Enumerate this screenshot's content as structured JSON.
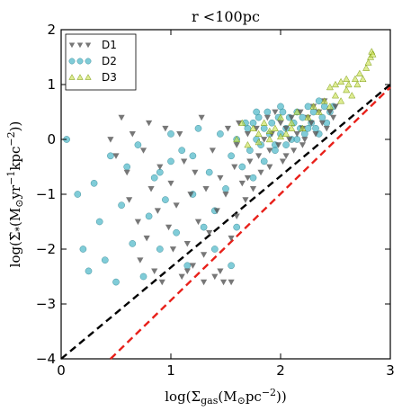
{
  "chart_data": {
    "type": "scatter",
    "title": "r <100pc",
    "xlabel": "log(Σgas(M⊙pc−2))",
    "ylabel": "log(Σ̇*(M⊙yr−1kpc−2))",
    "xlim": [
      0,
      3
    ],
    "ylim": [
      -4,
      2
    ],
    "x_ticks": [
      "0",
      "1",
      "2",
      "3"
    ],
    "y_ticks": [
      "−4",
      "−3",
      "−2",
      "−1",
      "0",
      "1",
      "2"
    ],
    "grid": false,
    "legend_position": "top-left",
    "series": [
      {
        "name": "D1",
        "marker": "triangle-down",
        "color": "#555555",
        "points": [
          [
            0.45,
            0.0
          ],
          [
            0.5,
            -0.3
          ],
          [
            0.55,
            0.4
          ],
          [
            0.6,
            -0.6
          ],
          [
            0.62,
            -1.1
          ],
          [
            0.65,
            0.1
          ],
          [
            0.7,
            -1.5
          ],
          [
            0.72,
            -2.2
          ],
          [
            0.75,
            -0.2
          ],
          [
            0.78,
            -1.8
          ],
          [
            0.8,
            0.3
          ],
          [
            0.82,
            -0.9
          ],
          [
            0.85,
            -2.4
          ],
          [
            0.88,
            -1.3
          ],
          [
            0.9,
            -0.5
          ],
          [
            0.92,
            -2.6
          ],
          [
            0.95,
            0.2
          ],
          [
            0.98,
            -1.6
          ],
          [
            1.0,
            -0.8
          ],
          [
            1.02,
            -2.0
          ],
          [
            1.05,
            -1.2
          ],
          [
            1.08,
            0.1
          ],
          [
            1.1,
            -2.5
          ],
          [
            1.12,
            -0.4
          ],
          [
            1.15,
            -1.9
          ],
          [
            1.18,
            -1.0
          ],
          [
            1.2,
            -2.3
          ],
          [
            1.22,
            -0.6
          ],
          [
            1.25,
            -1.5
          ],
          [
            1.28,
            0.4
          ],
          [
            1.3,
            -2.1
          ],
          [
            1.32,
            -0.9
          ],
          [
            1.35,
            -1.7
          ],
          [
            1.38,
            -0.2
          ],
          [
            1.4,
            -2.5
          ],
          [
            1.42,
            -1.3
          ],
          [
            1.45,
            -0.7
          ],
          [
            1.48,
            -2.6
          ],
          [
            1.5,
            -1.0
          ],
          [
            1.52,
            0.2
          ],
          [
            1.55,
            -1.8
          ],
          [
            1.58,
            -0.5
          ],
          [
            1.6,
            -1.4
          ],
          [
            1.62,
            0.3
          ],
          [
            1.65,
            -0.8
          ],
          [
            1.68,
            -1.1
          ],
          [
            1.7,
            0.1
          ],
          [
            1.72,
            -0.4
          ],
          [
            1.75,
            -0.9
          ],
          [
            1.78,
            0.2
          ],
          [
            1.8,
            -0.3
          ],
          [
            1.82,
            -0.6
          ],
          [
            1.85,
            0.0
          ],
          [
            1.88,
            0.4
          ],
          [
            1.9,
            -0.2
          ],
          [
            1.92,
            0.1
          ],
          [
            1.95,
            0.5
          ],
          [
            1.98,
            -0.1
          ],
          [
            2.0,
            0.3
          ],
          [
            2.02,
            -0.4
          ],
          [
            2.05,
            0.2
          ],
          [
            2.08,
            0.0
          ],
          [
            2.1,
            0.4
          ],
          [
            2.12,
            -0.2
          ],
          [
            2.15,
            0.1
          ],
          [
            2.18,
            0.5
          ],
          [
            2.2,
            0.2
          ],
          [
            2.22,
            0.0
          ],
          [
            2.25,
            0.4
          ],
          [
            2.28,
            0.3
          ],
          [
            2.3,
            0.6
          ],
          [
            2.32,
            0.1
          ],
          [
            2.35,
            0.5
          ],
          [
            2.38,
            0.3
          ],
          [
            2.4,
            0.7
          ],
          [
            2.42,
            0.2
          ],
          [
            2.45,
            0.5
          ],
          [
            2.48,
            0.4
          ],
          [
            2.5,
            0.6
          ],
          [
            1.55,
            -2.6
          ],
          [
            1.45,
            -2.4
          ],
          [
            1.3,
            -2.6
          ],
          [
            1.15,
            -2.4
          ],
          [
            1.6,
            -0.1
          ],
          [
            1.7,
            -0.7
          ],
          [
            1.9,
            -0.5
          ],
          [
            2.05,
            -0.3
          ],
          [
            2.2,
            -0.1
          ]
        ]
      },
      {
        "name": "D2",
        "marker": "circle",
        "color": "#4fb8c9",
        "points": [
          [
            0.05,
            0.0
          ],
          [
            0.15,
            -1.0
          ],
          [
            0.2,
            -2.0
          ],
          [
            0.25,
            -2.4
          ],
          [
            0.3,
            -0.8
          ],
          [
            0.35,
            -1.5
          ],
          [
            0.4,
            -2.2
          ],
          [
            0.45,
            -0.3
          ],
          [
            0.5,
            -2.6
          ],
          [
            0.55,
            -1.2
          ],
          [
            0.6,
            -0.5
          ],
          [
            0.65,
            -1.9
          ],
          [
            0.7,
            -0.1
          ],
          [
            0.75,
            -2.5
          ],
          [
            0.8,
            -1.4
          ],
          [
            0.85,
            -0.7
          ],
          [
            0.9,
            -2.0
          ],
          [
            0.95,
            -1.1
          ],
          [
            1.0,
            -0.4
          ],
          [
            1.05,
            -1.7
          ],
          [
            1.1,
            -0.2
          ],
          [
            1.15,
            -2.3
          ],
          [
            1.2,
            -1.0
          ],
          [
            1.25,
            0.2
          ],
          [
            1.3,
            -1.6
          ],
          [
            1.35,
            -0.6
          ],
          [
            1.4,
            -1.3
          ],
          [
            1.45,
            0.1
          ],
          [
            1.5,
            -0.9
          ],
          [
            1.55,
            -0.3
          ],
          [
            1.6,
            0.0
          ],
          [
            1.65,
            -0.5
          ],
          [
            1.7,
            0.2
          ],
          [
            1.72,
            -0.2
          ],
          [
            1.75,
            0.3
          ],
          [
            1.78,
            0.0
          ],
          [
            1.8,
            0.4
          ],
          [
            1.82,
            -0.1
          ],
          [
            1.85,
            0.2
          ],
          [
            1.88,
            0.5
          ],
          [
            1.9,
            0.1
          ],
          [
            1.92,
            0.3
          ],
          [
            1.95,
            -0.1
          ],
          [
            1.98,
            0.4
          ],
          [
            2.0,
            0.1
          ],
          [
            2.02,
            0.5
          ],
          [
            2.05,
            0.2
          ],
          [
            2.08,
            0.4
          ],
          [
            2.1,
            0.0
          ],
          [
            2.12,
            0.3
          ],
          [
            2.15,
            0.5
          ],
          [
            2.18,
            0.2
          ],
          [
            2.2,
            0.4
          ],
          [
            2.22,
            0.1
          ],
          [
            2.25,
            0.6
          ],
          [
            2.28,
            0.3
          ],
          [
            2.3,
            0.5
          ],
          [
            2.32,
            0.2
          ],
          [
            2.35,
            0.7
          ],
          [
            2.38,
            0.4
          ],
          [
            2.4,
            0.6
          ],
          [
            2.42,
            0.3
          ],
          [
            2.45,
            0.5
          ],
          [
            2.48,
            0.6
          ],
          [
            1.6,
            -1.6
          ],
          [
            1.55,
            -2.3
          ],
          [
            1.4,
            -2.0
          ],
          [
            1.2,
            -0.3
          ],
          [
            1.0,
            0.1
          ],
          [
            0.9,
            -0.6
          ],
          [
            1.75,
            -0.7
          ],
          [
            1.85,
            -0.4
          ],
          [
            1.95,
            -0.2
          ],
          [
            2.05,
            -0.1
          ],
          [
            2.15,
            0.0
          ],
          [
            2.25,
            0.2
          ],
          [
            2.35,
            0.1
          ],
          [
            1.68,
            0.3
          ],
          [
            1.78,
            0.5
          ],
          [
            2.0,
            0.6
          ]
        ]
      },
      {
        "name": "D3",
        "marker": "triangle-up",
        "color": "#c8e04a",
        "points": [
          [
            1.6,
            0.0
          ],
          [
            1.65,
            0.3
          ],
          [
            1.7,
            -0.1
          ],
          [
            1.75,
            0.2
          ],
          [
            1.8,
            0.1
          ],
          [
            1.85,
            0.3
          ],
          [
            1.9,
            0.0
          ],
          [
            1.95,
            0.2
          ],
          [
            2.0,
            0.4
          ],
          [
            2.05,
            0.1
          ],
          [
            2.1,
            0.3
          ],
          [
            2.15,
            0.5
          ],
          [
            2.2,
            0.2
          ],
          [
            2.25,
            0.4
          ],
          [
            2.3,
            0.6
          ],
          [
            2.35,
            0.5
          ],
          [
            2.4,
            0.7
          ],
          [
            2.45,
            0.6
          ],
          [
            2.5,
            0.8
          ],
          [
            2.55,
            0.7
          ],
          [
            2.6,
            0.9
          ],
          [
            2.62,
            1.0
          ],
          [
            2.65,
            0.8
          ],
          [
            2.68,
            1.1
          ],
          [
            2.7,
            1.0
          ],
          [
            2.72,
            1.2
          ],
          [
            2.75,
            1.1
          ],
          [
            2.78,
            1.3
          ],
          [
            2.8,
            1.4
          ],
          [
            2.82,
            1.5
          ],
          [
            2.83,
            1.6
          ],
          [
            2.84,
            1.55
          ],
          [
            2.5,
            1.0
          ],
          [
            2.55,
            1.05
          ],
          [
            2.6,
            1.1
          ],
          [
            2.45,
            0.95
          ],
          [
            1.9,
            0.15
          ],
          [
            2.0,
            0.05
          ],
          [
            1.8,
            -0.05
          ],
          [
            2.1,
            0.2
          ]
        ]
      }
    ],
    "lines": [
      {
        "name": "black-dashed",
        "color": "#000000",
        "points": [
          [
            0,
            -4
          ],
          [
            3,
            1
          ]
        ]
      },
      {
        "name": "red-dashed",
        "color": "#e8201a",
        "points": [
          [
            0.45,
            -4
          ],
          [
            3,
            0.95
          ]
        ]
      }
    ]
  }
}
